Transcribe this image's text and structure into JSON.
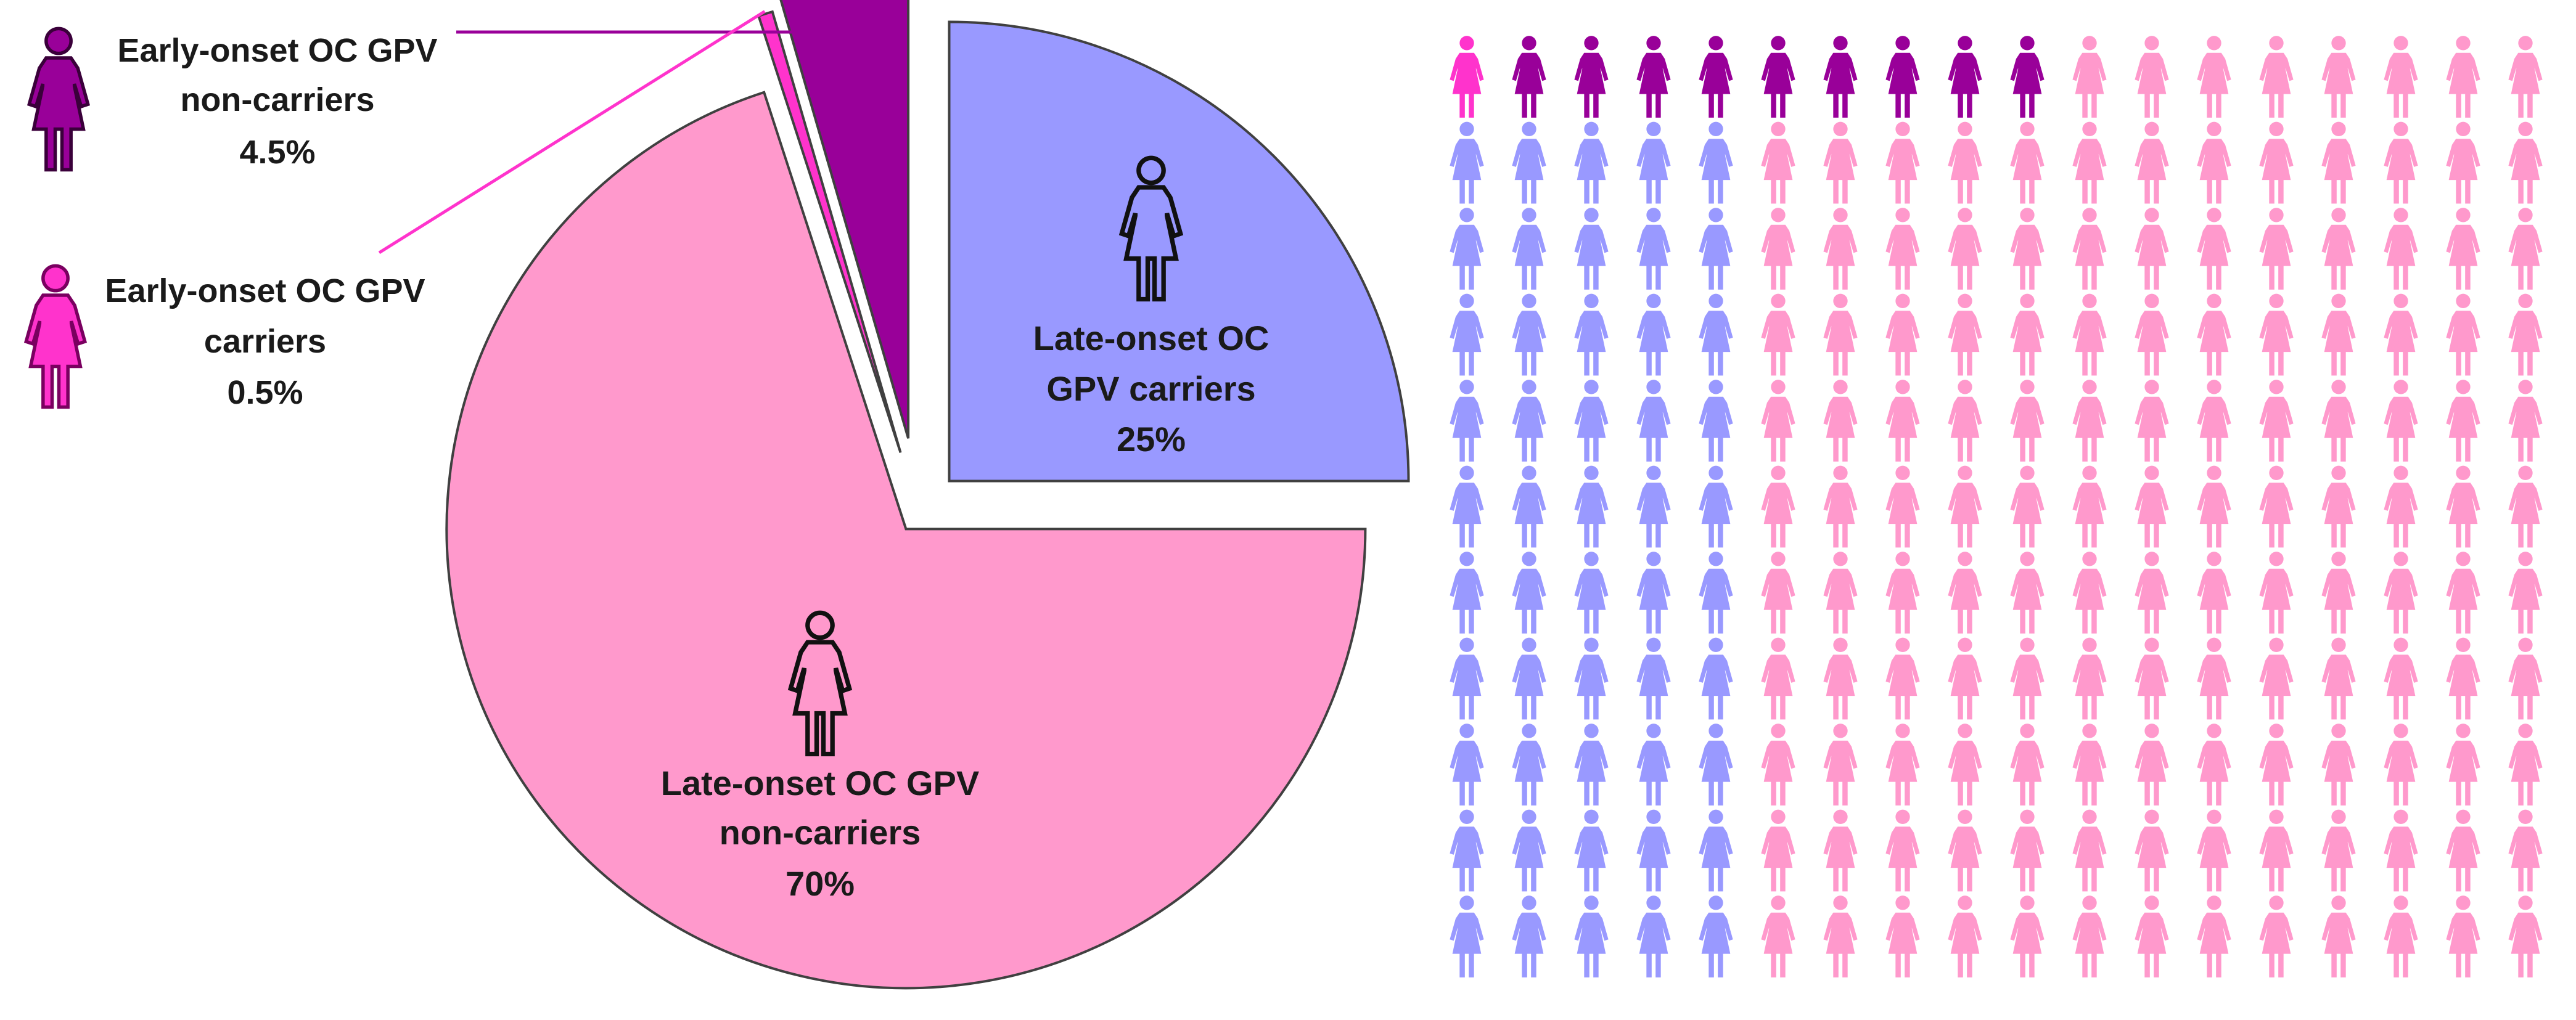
{
  "chart_data": [
    {
      "type": "pie",
      "title": "",
      "slices": [
        {
          "label_lines": [
            "Late-onset OC",
            "GPV carriers"
          ],
          "value": 25,
          "value_label": "25%",
          "color": "#9999ff"
        },
        {
          "label_lines": [
            "Late-onset OC GPV",
            "non-carriers"
          ],
          "value": 70,
          "value_label": "70%",
          "color": "#ff99cc"
        },
        {
          "label_lines": [
            "Early-onset OC GPV",
            "carriers"
          ],
          "value": 0.5,
          "value_label": "0.5%",
          "color": "#ff33cc"
        },
        {
          "label_lines": [
            "Early-onset OC GPV",
            "non-carriers"
          ],
          "value": 4.5,
          "value_label": "4.5%",
          "color": "#990099"
        }
      ]
    },
    {
      "type": "pictogram",
      "rows": 11,
      "columns": 18,
      "unit": "one woman icon per person",
      "counts": {
        "early_onset_gpv_carriers": 1,
        "early_onset_gpv_non_carriers": 9,
        "late_onset_gpv_carriers": 50,
        "late_onset_gpv_non_carriers": 138
      },
      "colors": {
        "early_onset_gpv_carriers": "#ff33cc",
        "early_onset_gpv_non_carriers": "#990099",
        "late_onset_gpv_carriers": "#9999ff",
        "late_onset_gpv_non_carriers": "#ff99cc"
      }
    }
  ],
  "icon": "woman-icon"
}
